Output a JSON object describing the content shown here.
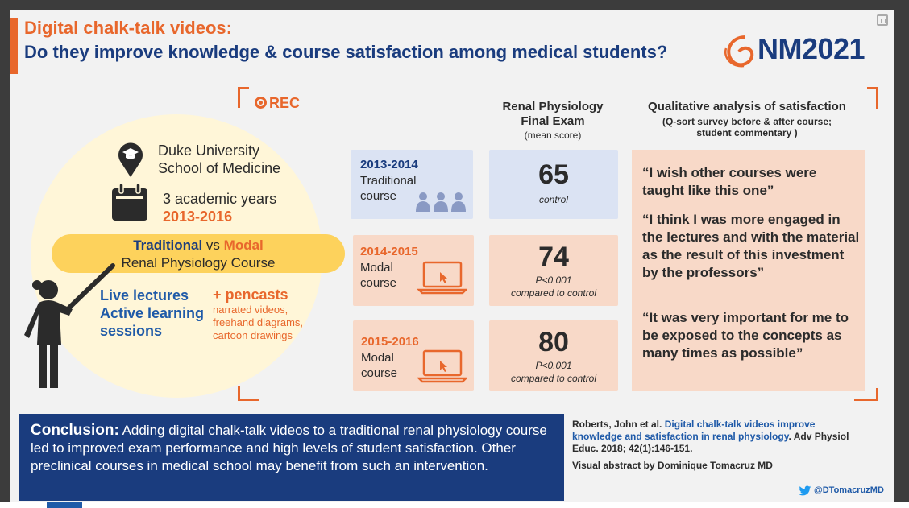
{
  "header": {
    "title_line1": "Digital chalk-talk videos:",
    "title_line2": "Do they improve knowledge & course satisfaction among medical students?",
    "logo_text": "NM2021"
  },
  "rec_label": "REC",
  "left_panel": {
    "institution_line1": "Duke University",
    "institution_line2": "School of Medicine",
    "years_line1": "3 academic years",
    "years_range": "2013-2016",
    "banner_traditional": "Traditional",
    "banner_vs": " vs ",
    "banner_modal": "Modal",
    "banner_line2": "Renal Physiology Course",
    "traditional_items": [
      "Live lectures",
      "Active learning",
      "sessions"
    ],
    "modal_addition": "+ pencasts",
    "modal_details": [
      "narrated videos,",
      "freehand diagrams,",
      "cartoon drawings"
    ]
  },
  "exam_column": {
    "heading_line1": "Renal Physiology",
    "heading_line2": "Final Exam",
    "subheading": "(mean score)"
  },
  "qualitative_column": {
    "heading": "Qualitative analysis of satisfaction",
    "sub_line1": "(Q-sort survey before & after course;",
    "sub_line2": "student commentary )"
  },
  "courses": [
    {
      "year": "2013-2014",
      "type_line1": "Traditional",
      "type_line2": "course",
      "score": "65",
      "note_line1": "control",
      "note_line2": ""
    },
    {
      "year": "2014-2015",
      "type_line1": "Modal",
      "type_line2": "course",
      "score": "74",
      "note_line1": "P<0.001",
      "note_line2": "compared to control"
    },
    {
      "year": "2015-2016",
      "type_line1": "Modal",
      "type_line2": "course",
      "score": "80",
      "note_line1": "P<0.001",
      "note_line2": "compared to control"
    }
  ],
  "quotes": [
    "“I wish other courses were taught like this one”",
    "“I think I was more engaged in the lectures and with the material as the result of this investment by the professors”",
    "“It was very important for me to be exposed to the concepts as many times as possible”"
  ],
  "conclusion": {
    "label": "Conclusion:",
    "text": " Adding digital chalk-talk videos to a traditional renal physiology course led to improved exam performance and high levels of student satisfaction. Other preclinical courses in medical school may benefit from such an intervention."
  },
  "reference": {
    "authors": "Roberts, John et al. ",
    "title": "Digital chalk-talk videos improve knowledge and satisfaction in renal physiology",
    "journal": ". Adv Physiol Educ. 2018; 42(1):146-151.",
    "credit": "Visual abstract by Dominique Tomacruz MD",
    "twitter_handle": "@DTomacruzMD"
  },
  "colors": {
    "orange": "#e8672c",
    "navy": "#1a3c7e",
    "blue": "#1f5aa8",
    "peach": "#f8d9c8",
    "light_blue": "#dbe3f3",
    "yellow": "#fdd25c",
    "cream": "#fff6d8"
  }
}
